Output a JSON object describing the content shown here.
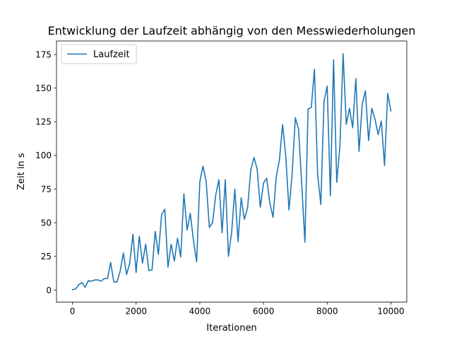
{
  "chart_data": {
    "type": "line",
    "title": "Entwicklung der Laufzeit abhängig von den Messwiederholungen",
    "xlabel": "Iterationen",
    "ylabel": "Zeit in s",
    "xlim": [
      -500,
      10500
    ],
    "ylim": [
      -9,
      185
    ],
    "xticks": [
      0,
      2000,
      4000,
      6000,
      8000,
      10000
    ],
    "xtick_labels": [
      "0",
      "2000",
      "4000",
      "6000",
      "8000",
      "10000"
    ],
    "yticks": [
      0,
      25,
      50,
      75,
      100,
      125,
      150,
      175
    ],
    "ytick_labels": [
      "0",
      "25",
      "50",
      "75",
      "100",
      "125",
      "150",
      "175"
    ],
    "grid": false,
    "legend_position": "top-left",
    "series": [
      {
        "name": "Laufzeit",
        "color": "#1f77b4",
        "x": [
          0,
          100,
          200,
          300,
          400,
          500,
          600,
          700,
          800,
          900,
          1000,
          1100,
          1200,
          1300,
          1400,
          1500,
          1600,
          1700,
          1800,
          1900,
          2000,
          2100,
          2200,
          2300,
          2400,
          2500,
          2600,
          2700,
          2800,
          2900,
          3000,
          3100,
          3200,
          3300,
          3400,
          3500,
          3600,
          3700,
          3800,
          3900,
          4000,
          4100,
          4200,
          4300,
          4400,
          4500,
          4600,
          4700,
          4800,
          4900,
          5000,
          5100,
          5200,
          5300,
          5400,
          5500,
          5600,
          5700,
          5800,
          5900,
          6000,
          6100,
          6200,
          6300,
          6400,
          6500,
          6600,
          6700,
          6800,
          6900,
          7000,
          7100,
          7200,
          7300,
          7400,
          7500,
          7600,
          7700,
          7800,
          7900,
          8000,
          8100,
          8200,
          8300,
          8400,
          8500,
          8600,
          8700,
          8800,
          8900,
          9000,
          9100,
          9200,
          9300,
          9400,
          9500,
          9600,
          9700,
          9800,
          9900,
          10000
        ],
        "y": [
          0.3,
          0.8,
          4,
          5.5,
          2,
          7,
          6.5,
          7.5,
          7.5,
          6.5,
          8.5,
          8.5,
          20.5,
          6,
          6,
          14,
          27.5,
          11.5,
          20,
          41.5,
          13,
          40,
          20,
          34,
          14.5,
          15,
          43.5,
          26.5,
          56,
          60,
          17,
          34,
          21.5,
          38.5,
          24.5,
          71.5,
          44.5,
          57,
          37,
          21,
          80.5,
          92,
          80.5,
          46.5,
          50,
          70.5,
          82,
          42.5,
          82,
          25,
          43,
          75,
          36,
          68.5,
          52.5,
          61,
          89,
          98.5,
          90,
          61.5,
          79.5,
          83,
          64.5,
          54,
          84,
          96.5,
          123,
          99.5,
          59.5,
          86.5,
          128,
          119.5,
          79,
          35.5,
          134.5,
          135.5,
          164,
          86,
          63.5,
          140,
          151.5,
          70,
          171,
          80,
          107,
          175.5,
          123,
          135,
          120.5,
          157,
          103,
          138,
          148,
          111,
          135,
          127,
          115.5,
          125.5,
          92.5,
          146,
          133
        ]
      }
    ]
  }
}
